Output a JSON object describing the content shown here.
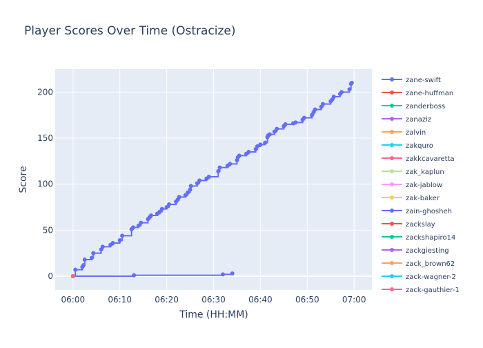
{
  "chart_data": {
    "type": "line",
    "title": "Player Scores Over Time (Ostracize)",
    "xlabel": "Time (HH:MM)",
    "ylabel": "Score",
    "x_range_minutes": [
      -3.8,
      63.8
    ],
    "ylim": [
      -15,
      225
    ],
    "x_ticks": [
      {
        "minute": 0,
        "label": "06:00"
      },
      {
        "minute": 10,
        "label": "06:10"
      },
      {
        "minute": 20,
        "label": "06:20"
      },
      {
        "minute": 30,
        "label": "06:30"
      },
      {
        "minute": 40,
        "label": "06:40"
      },
      {
        "minute": 50,
        "label": "06:50"
      },
      {
        "minute": 60,
        "label": "07:00"
      }
    ],
    "y_ticks": [
      0,
      50,
      100,
      150,
      200
    ],
    "grid": true,
    "legend_placement": "right",
    "plot_bg": "#E5ECF6",
    "series": [
      {
        "name": "zane-swift",
        "color": "#636EFA",
        "line_shape": "hv",
        "points": [
          {
            "t": "06:00",
            "y": 0
          },
          {
            "t": "06:00:30",
            "y": 7
          },
          {
            "t": "06:02",
            "y": 10
          },
          {
            "t": "06:02:15",
            "y": 12
          },
          {
            "t": "06:02:30",
            "y": 18
          },
          {
            "t": "06:04",
            "y": 20
          },
          {
            "t": "06:04:20",
            "y": 25
          },
          {
            "t": "06:06",
            "y": 29
          },
          {
            "t": "06:06:20",
            "y": 32
          },
          {
            "t": "06:08",
            "y": 34
          },
          {
            "t": "06:08:30",
            "y": 36
          },
          {
            "t": "06:10",
            "y": 39
          },
          {
            "t": "06:10:30",
            "y": 44
          },
          {
            "t": "06:12:30",
            "y": 51
          },
          {
            "t": "06:12:50",
            "y": 53
          },
          {
            "t": "06:14",
            "y": 55
          },
          {
            "t": "06:14:30",
            "y": 58
          },
          {
            "t": "06:16",
            "y": 62
          },
          {
            "t": "06:16:20",
            "y": 64
          },
          {
            "t": "06:16:40",
            "y": 66
          },
          {
            "t": "06:18",
            "y": 68
          },
          {
            "t": "06:18:30",
            "y": 70
          },
          {
            "t": "06:19",
            "y": 73
          },
          {
            "t": "06:20",
            "y": 75
          },
          {
            "t": "06:20:30",
            "y": 78
          },
          {
            "t": "06:22",
            "y": 81
          },
          {
            "t": "06:22:20",
            "y": 83
          },
          {
            "t": "06:22:40",
            "y": 86
          },
          {
            "t": "06:24",
            "y": 88
          },
          {
            "t": "06:24:30",
            "y": 91
          },
          {
            "t": "06:25",
            "y": 94
          },
          {
            "t": "06:25:10",
            "y": 98
          },
          {
            "t": "06:26:30",
            "y": 101
          },
          {
            "t": "06:27",
            "y": 104
          },
          {
            "t": "06:28:30",
            "y": 106
          },
          {
            "t": "06:29",
            "y": 108
          },
          {
            "t": "06:31",
            "y": 114
          },
          {
            "t": "06:31:20",
            "y": 118
          },
          {
            "t": "06:33",
            "y": 120
          },
          {
            "t": "06:33:30",
            "y": 122
          },
          {
            "t": "06:35",
            "y": 126
          },
          {
            "t": "06:35:10",
            "y": 129
          },
          {
            "t": "06:35:30",
            "y": 131
          },
          {
            "t": "06:37",
            "y": 133
          },
          {
            "t": "06:37:30",
            "y": 135
          },
          {
            "t": "06:39",
            "y": 138
          },
          {
            "t": "06:39:20",
            "y": 141
          },
          {
            "t": "06:40",
            "y": 143
          },
          {
            "t": "06:41",
            "y": 145
          },
          {
            "t": "06:41:30",
            "y": 151
          },
          {
            "t": "06:41:40",
            "y": 153
          },
          {
            "t": "06:42",
            "y": 154
          },
          {
            "t": "06:43",
            "y": 157
          },
          {
            "t": "06:43:30",
            "y": 160
          },
          {
            "t": "06:45",
            "y": 163
          },
          {
            "t": "06:45:20",
            "y": 165
          },
          {
            "t": "06:47",
            "y": 166
          },
          {
            "t": "06:47:30",
            "y": 167
          },
          {
            "t": "06:49",
            "y": 170
          },
          {
            "t": "06:49:20",
            "y": 172
          },
          {
            "t": "06:51",
            "y": 175
          },
          {
            "t": "06:51:20",
            "y": 178
          },
          {
            "t": "06:51:40",
            "y": 181
          },
          {
            "t": "06:53",
            "y": 184
          },
          {
            "t": "06:53:20",
            "y": 187
          },
          {
            "t": "06:55",
            "y": 190
          },
          {
            "t": "06:55:20",
            "y": 192
          },
          {
            "t": "06:55:40",
            "y": 195
          },
          {
            "t": "06:57",
            "y": 198
          },
          {
            "t": "06:57:20",
            "y": 200
          },
          {
            "t": "06:59",
            "y": 203
          },
          {
            "t": "06:59:20",
            "y": 209
          },
          {
            "t": "06:59:30",
            "y": 210
          }
        ]
      },
      {
        "name": "zane-huffman",
        "color": "#EF553B",
        "line_shape": "hv",
        "points": [
          {
            "t": "06:00",
            "y": 0
          }
        ]
      },
      {
        "name": "zanderboss",
        "color": "#00CC96",
        "line_shape": "hv",
        "points": [
          {
            "t": "06:00",
            "y": 0
          }
        ]
      },
      {
        "name": "zanaziz",
        "color": "#AB63FA",
        "line_shape": "hv",
        "points": [
          {
            "t": "06:00",
            "y": 0
          }
        ]
      },
      {
        "name": "zalvin",
        "color": "#FFA15A",
        "line_shape": "hv",
        "points": [
          {
            "t": "06:00",
            "y": 0
          }
        ]
      },
      {
        "name": "zakquro",
        "color": "#19D3F3",
        "line_shape": "hv",
        "points": [
          {
            "t": "06:00",
            "y": 0
          }
        ]
      },
      {
        "name": "zakkcavaretta",
        "color": "#FF6692",
        "line_shape": "hv",
        "points": [
          {
            "t": "06:00",
            "y": 0
          }
        ]
      },
      {
        "name": "zak_kaplun",
        "color": "#B6E880",
        "line_shape": "hv",
        "points": [
          {
            "t": "06:00",
            "y": 0
          }
        ]
      },
      {
        "name": "zak-jablow",
        "color": "#FF97FF",
        "line_shape": "hv",
        "points": [
          {
            "t": "06:00",
            "y": 0
          }
        ]
      },
      {
        "name": "zak-baker",
        "color": "#FECB52",
        "line_shape": "hv",
        "points": [
          {
            "t": "06:00",
            "y": 0
          }
        ]
      },
      {
        "name": "zain-ghosheh",
        "color": "#636EFA",
        "line_shape": "hv",
        "points": [
          {
            "t": "06:00",
            "y": 0
          },
          {
            "t": "06:13",
            "y": 1
          },
          {
            "t": "06:32",
            "y": 2
          },
          {
            "t": "06:34",
            "y": 3
          }
        ]
      },
      {
        "name": "zackslay",
        "color": "#EF553B",
        "line_shape": "hv",
        "points": [
          {
            "t": "06:00",
            "y": 0
          }
        ]
      },
      {
        "name": "zackshapiro14",
        "color": "#00CC96",
        "line_shape": "hv",
        "points": [
          {
            "t": "06:00",
            "y": 0
          }
        ]
      },
      {
        "name": "zackgiesting",
        "color": "#AB63FA",
        "line_shape": "hv",
        "points": [
          {
            "t": "06:00",
            "y": 0
          }
        ]
      },
      {
        "name": "zack_brown62",
        "color": "#FFA15A",
        "line_shape": "hv",
        "points": [
          {
            "t": "06:00",
            "y": 0
          }
        ]
      },
      {
        "name": "zack-wagner-2",
        "color": "#19D3F3",
        "line_shape": "hv",
        "points": [
          {
            "t": "06:00",
            "y": 0
          }
        ]
      },
      {
        "name": "zack-gauthier-1",
        "color": "#FF6692",
        "line_shape": "hv",
        "points": [
          {
            "t": "06:00",
            "y": 0
          }
        ]
      }
    ]
  }
}
